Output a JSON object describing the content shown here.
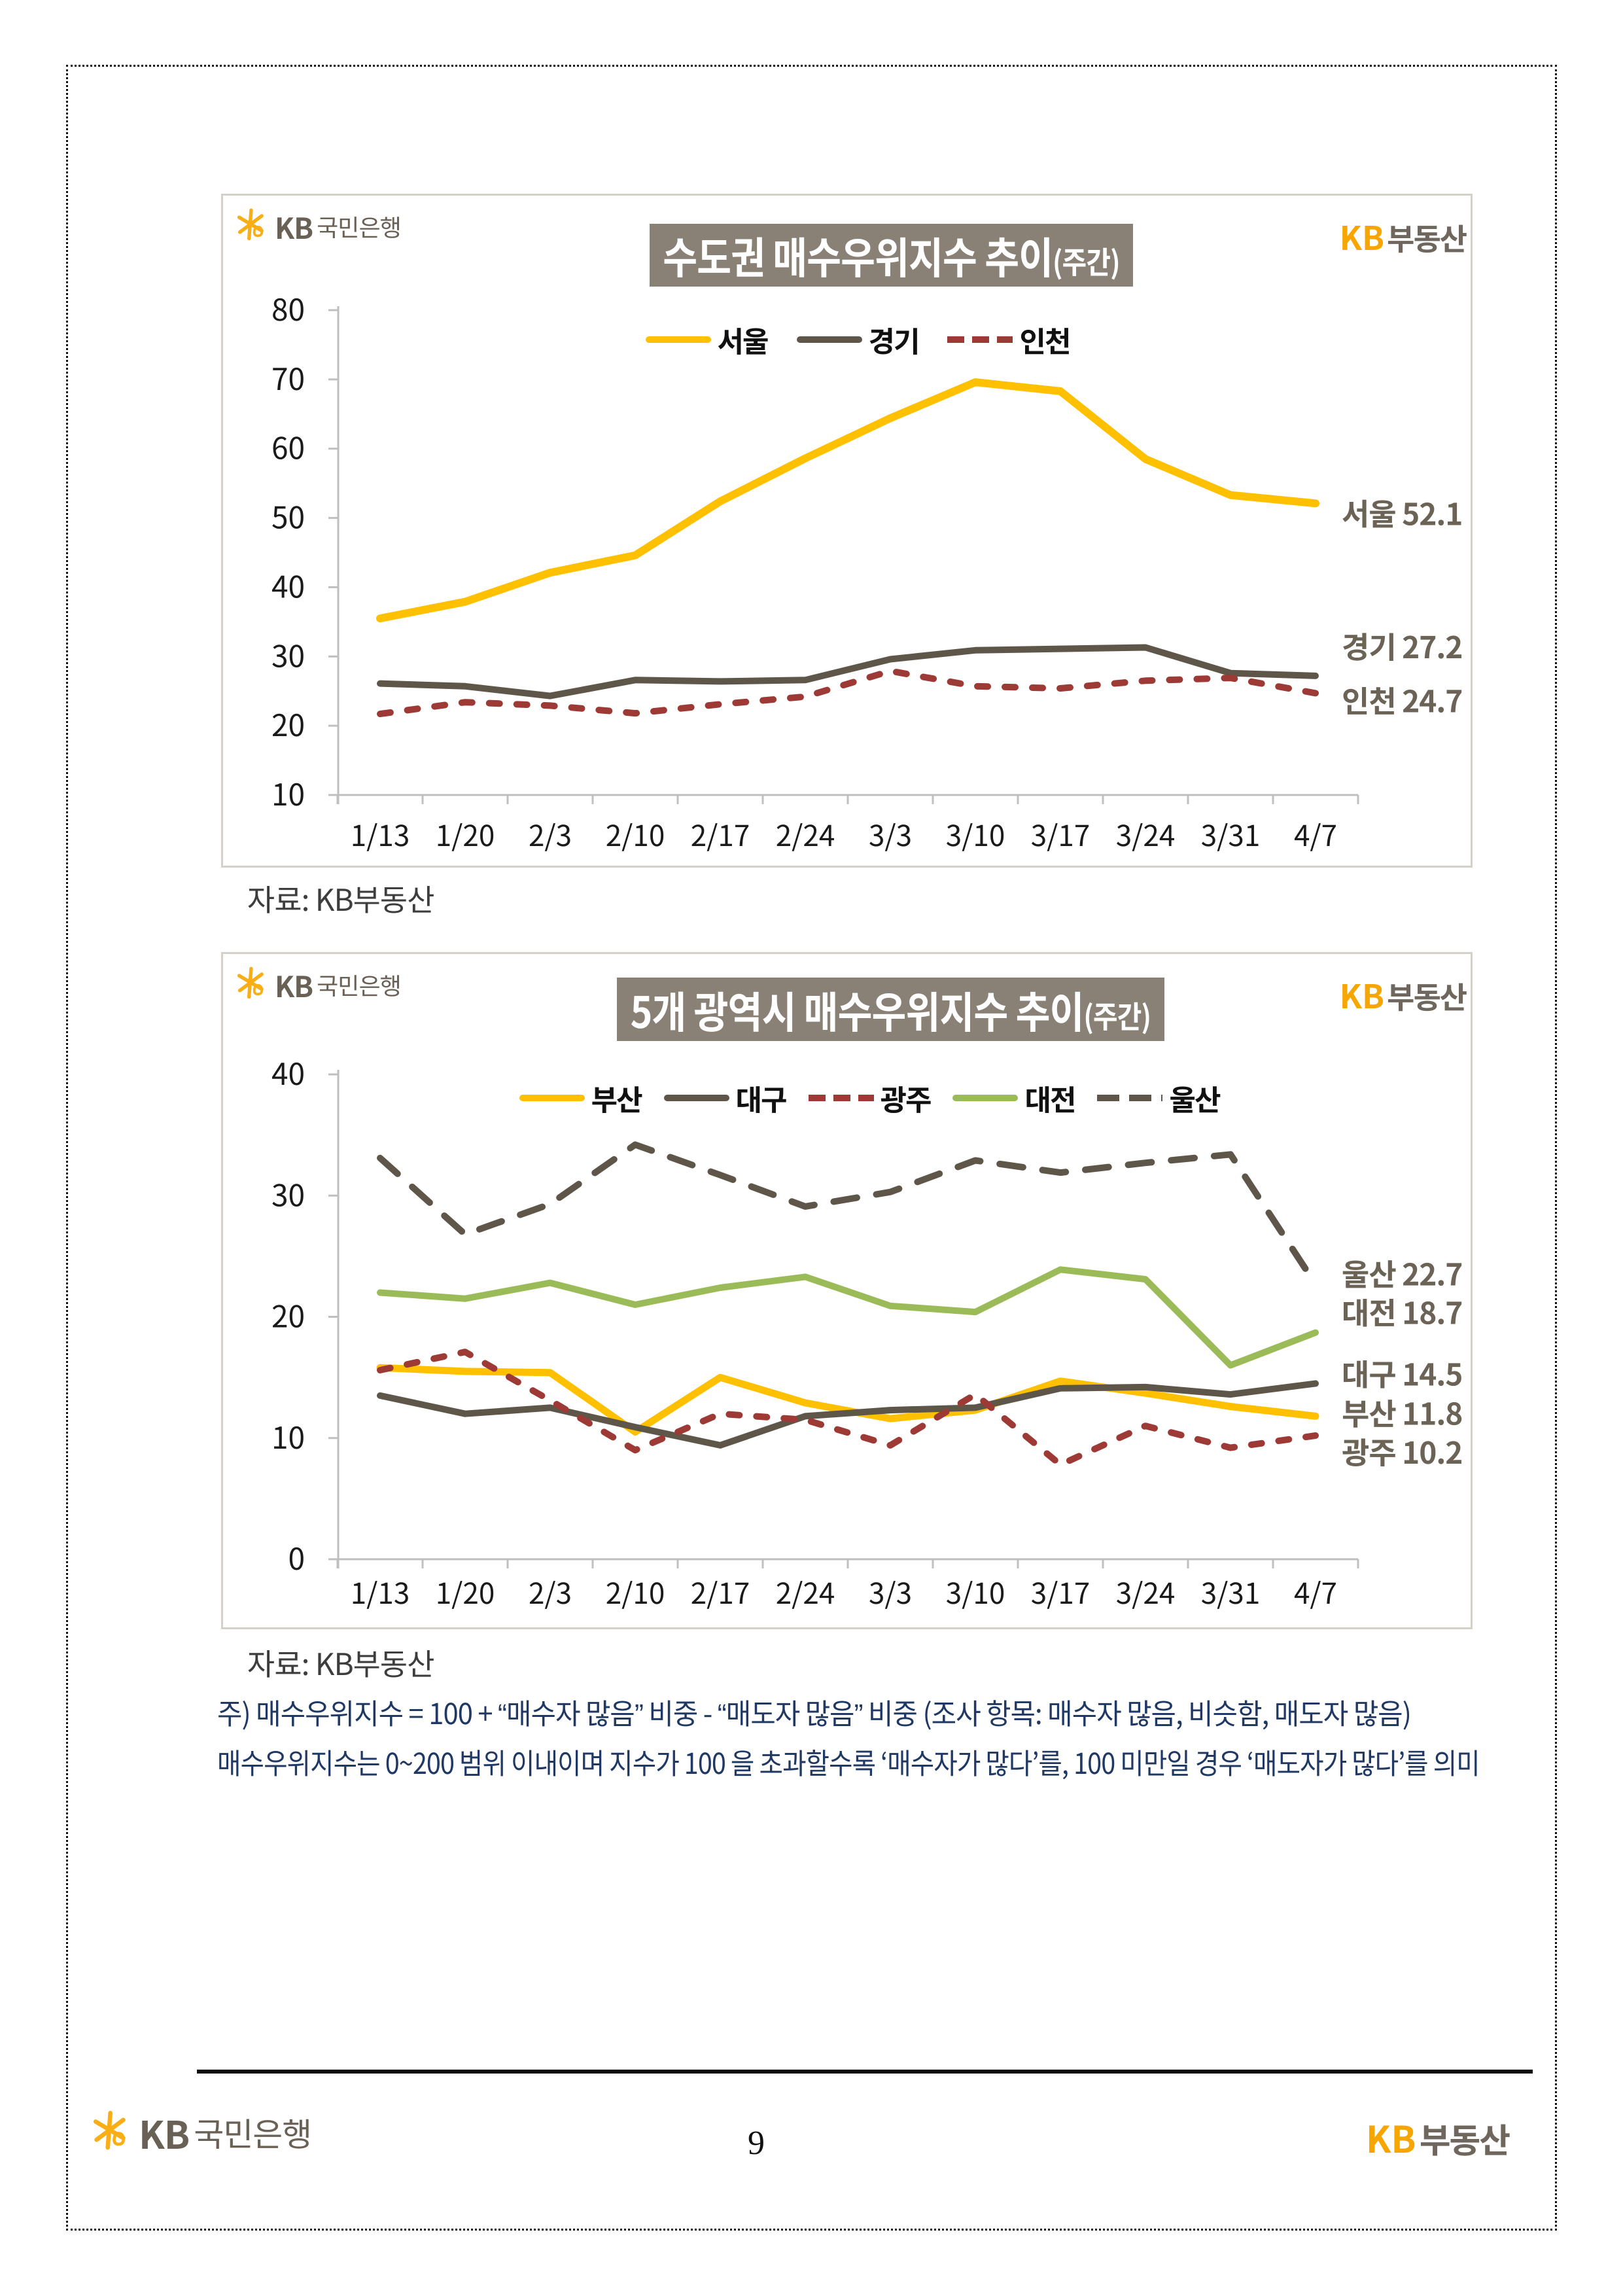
{
  "page": {
    "number": "9",
    "source_note": "자료: KB부동산",
    "footnote_line1": "주)  매수우위지수  =  100 + “매수자  많음”  비중  -  “매도자  많음”  비중    (조사  항목:  매수자  많음,  비슷함,  매도자  많음)",
    "footnote_line2": "매수우위지수는  0~200  범위  이내이며  지수가  100 을  초과할수록  ‘매수자가  많다’를, 100  미만일  경우  ‘매도자가  많다’를  의미"
  },
  "logos": {
    "bank_kb": "KB",
    "bank_name": "국민은행",
    "land_kb": "KB",
    "land_name": "부동산"
  },
  "colors": {
    "seoul_yellow": "#FFC000",
    "taupe": "#5E5649",
    "brick_red": "#9E3A35",
    "green": "#9BBB59",
    "title_bar": "#8A8176",
    "end_label": "#6B6355",
    "footnote_navy": "#1F3864",
    "logo_orange": "#F7A600",
    "logo_gray": "#6A6156"
  },
  "chart_data": [
    {
      "type": "line",
      "title": "수도권 매수우위지수 추이",
      "title_suffix": "(주간)",
      "xlabel": "",
      "ylabel": "",
      "ylim": [
        10,
        80
      ],
      "ytick_step": 10,
      "grid": false,
      "legend_position": "top",
      "categories": [
        "1/13",
        "1/20",
        "2/3",
        "2/10",
        "2/17",
        "2/24",
        "3/3",
        "3/10",
        "3/17",
        "3/24",
        "3/31",
        "4/7"
      ],
      "series": [
        {
          "name": "서울",
          "color": "#FFC000",
          "dash": false,
          "width": 12,
          "label_dy": 17,
          "end_label": "서울 52.1",
          "values": [
            35.5,
            37.9,
            42.1,
            44.6,
            52.4,
            58.6,
            64.4,
            69.6,
            68.3,
            58.5,
            53.3,
            52.1
          ]
        },
        {
          "name": "경기",
          "color": "#5E5649",
          "dash": false,
          "width": 10,
          "label_dy": -43,
          "end_label": "경기 27.2",
          "values": [
            26.1,
            25.7,
            24.3,
            26.6,
            26.4,
            26.6,
            29.6,
            30.9,
            31.1,
            31.3,
            27.6,
            27.2
          ]
        },
        {
          "name": "인천",
          "color": "#9E3A35",
          "dash": true,
          "width": 10,
          "label_dy": 13,
          "end_label": "인천 24.7",
          "values": [
            21.7,
            23.4,
            22.9,
            21.8,
            23.1,
            24.2,
            27.9,
            25.7,
            25.4,
            26.5,
            26.9,
            24.7
          ]
        }
      ]
    },
    {
      "type": "line",
      "title": "5개 광역시 매수우위지수 추이",
      "title_suffix": "(주간)",
      "xlabel": "",
      "ylabel": "",
      "ylim": [
        0,
        40
      ],
      "ytick_step": 10,
      "grid": false,
      "legend_position": "top",
      "categories": [
        "1/13",
        "1/20",
        "2/3",
        "2/10",
        "2/17",
        "2/24",
        "3/3",
        "3/10",
        "3/17",
        "3/24",
        "3/31",
        "4/7"
      ],
      "series": [
        {
          "name": "부산",
          "color": "#FFC000",
          "dash": false,
          "width": 11,
          "label_dy": -3,
          "end_label": "부산 11.8",
          "values": [
            15.8,
            15.5,
            15.4,
            10.5,
            15.0,
            12.9,
            11.6,
            12.3,
            14.7,
            13.7,
            12.6,
            11.8
          ]
        },
        {
          "name": "대구",
          "color": "#5E5649",
          "dash": false,
          "width": 10,
          "label_dy": -13,
          "end_label": "대구 14.5",
          "values": [
            13.5,
            12.0,
            12.5,
            10.9,
            9.4,
            11.8,
            12.3,
            12.5,
            14.1,
            14.2,
            13.6,
            14.5
          ]
        },
        {
          "name": "광주",
          "color": "#9E3A35",
          "dash": true,
          "width": 10,
          "label_dy": 27,
          "end_label": "광주 10.2",
          "values": [
            15.6,
            17.1,
            13.1,
            9.0,
            12.0,
            11.5,
            9.4,
            13.6,
            7.8,
            11.0,
            9.2,
            10.2
          ]
        },
        {
          "name": "대전",
          "color": "#9BBB59",
          "dash": false,
          "width": 10,
          "label_dy": -29,
          "end_label": "대전 18.7",
          "values": [
            22.0,
            21.5,
            22.8,
            21.0,
            22.4,
            23.3,
            20.9,
            20.4,
            23.9,
            23.1,
            16.0,
            18.7
          ]
        },
        {
          "name": "울산",
          "color": "#5E5649",
          "dash": "long",
          "width": 10,
          "label_dy": -14,
          "end_label": "울산 22.7",
          "values": [
            33.1,
            26.8,
            29.3,
            34.2,
            31.7,
            29.1,
            30.3,
            32.9,
            31.9,
            32.7,
            33.4,
            22.7
          ]
        }
      ]
    }
  ]
}
